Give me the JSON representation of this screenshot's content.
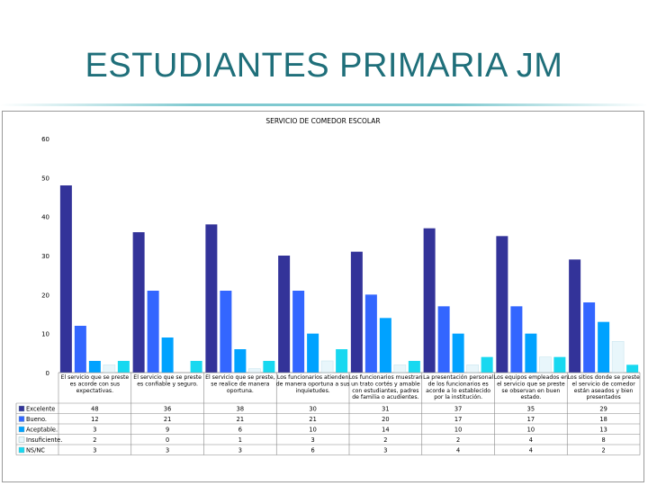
{
  "slide": {
    "title": "ESTUDIANTES PRIMARIA JM"
  },
  "colors": {
    "title": "#1f6f7a",
    "accent_line": "#7fc9d0"
  },
  "chart_data": {
    "type": "bar",
    "title": "SERVICIO DE COMEDOR ESCOLAR",
    "xlabel": "",
    "ylabel": "",
    "ylim": [
      0,
      60
    ],
    "yticks": [
      0,
      10,
      20,
      30,
      40,
      50,
      60
    ],
    "grid": false,
    "legend_position": "bottom-left (data table)",
    "categories": [
      [
        "El servicio que se preste",
        "es acorde con sus",
        "expectativas."
      ],
      [
        "El servicio que se preste",
        "es confiable y seguro."
      ],
      [
        "El servicio que se preste,",
        "se realice de manera",
        "oportuna."
      ],
      [
        "Los funcionarios atienden",
        "de manera oportuna a sus",
        "inquietudes."
      ],
      [
        "Los funcionarios muestran",
        "un trato cortés y amable",
        "con estudiantes, padres",
        "de familia o acudientes."
      ],
      [
        "La presentación personal",
        "de los funcionarios es",
        "acorde a lo establecido",
        "por la institución."
      ],
      [
        "Los equipos empleados en",
        "el servicio que se preste",
        "se observan en buen",
        "estado."
      ],
      [
        "Los sitios donde se preste",
        "el servicio de comedor",
        "están aseados y bien",
        "presentados"
      ]
    ],
    "series": [
      {
        "name": "Excelente",
        "color": "#333399",
        "values": [
          48,
          36,
          38,
          30,
          31,
          37,
          35,
          29
        ]
      },
      {
        "name": "Bueno.",
        "color": "#3366ff",
        "values": [
          12,
          21,
          21,
          21,
          20,
          17,
          17,
          18
        ]
      },
      {
        "name": "Aceptable.",
        "color": "#00a2ff",
        "values": [
          3,
          9,
          6,
          10,
          14,
          10,
          10,
          13
        ]
      },
      {
        "name": "Insuficiente.",
        "color": "#e8f6fb",
        "values": [
          2,
          0,
          1,
          3,
          2,
          2,
          4,
          8
        ]
      },
      {
        "name": "NS/NC",
        "color": "#18d8f0",
        "values": [
          3,
          3,
          3,
          6,
          3,
          4,
          4,
          2
        ]
      }
    ]
  }
}
